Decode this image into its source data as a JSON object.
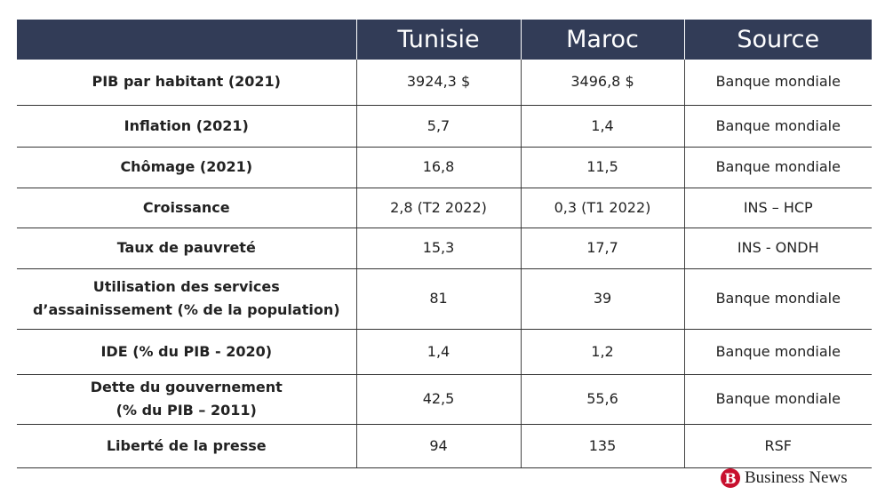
{
  "header": {
    "columns": [
      "Tunisie",
      "Maroc",
      "Source"
    ]
  },
  "rows": [
    {
      "label": [
        "PIB par habitant (2021)"
      ],
      "cells": [
        "3924,3 $",
        "3496,8 $",
        "Banque mondiale"
      ]
    },
    {
      "label": [
        "Inflation (2021)"
      ],
      "cells": [
        "5,7",
        "1,4",
        "Banque mondiale"
      ]
    },
    {
      "label": [
        "Chômage (2021)"
      ],
      "cells": [
        "16,8",
        "11,5",
        "Banque mondiale"
      ]
    },
    {
      "label": [
        "Croissance"
      ],
      "cells": [
        "2,8 (T2 2022)",
        "0,3 (T1 2022)",
        "INS – HCP"
      ]
    },
    {
      "label": [
        "Taux de pauvreté"
      ],
      "cells": [
        "15,3",
        "17,7",
        "INS - ONDH"
      ]
    },
    {
      "label": [
        "Utilisation des services",
        "d’assainissement (% de la population)"
      ],
      "cells": [
        "81",
        "39",
        "Banque mondiale"
      ]
    },
    {
      "label": [
        "IDE (% du PIB - 2020)"
      ],
      "cells": [
        "1,4",
        "1,2",
        "Banque mondiale"
      ]
    },
    {
      "label": [
        "Dette du gouvernement",
        "(% du PIB – 2011)"
      ],
      "cells": [
        "42,5",
        "55,6",
        "Banque mondiale"
      ]
    },
    {
      "label": [
        "Liberté de la presse"
      ],
      "cells": [
        "94",
        "135",
        "RSF"
      ]
    }
  ],
  "logo": {
    "mark": "B",
    "text": "Business News"
  }
}
